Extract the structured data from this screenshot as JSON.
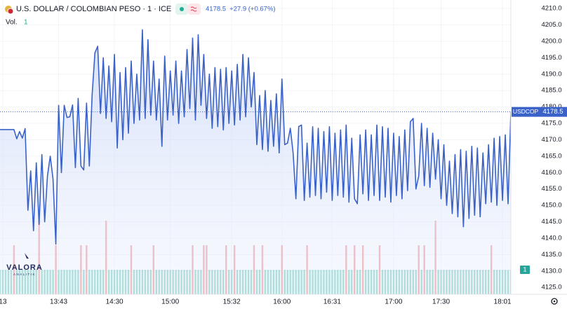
{
  "chart_data": {
    "type": "line",
    "title": "U.S. DOLLAR / COLOMBIAN PESO · 1 · ICE",
    "quote": "4178.5",
    "change": "+27.9 (+0.67%)",
    "watermark": {
      "brand": "VALORA",
      "tagline": "ANALITIK"
    },
    "grid": true,
    "xlim": [
      0,
      183
    ],
    "xticks": [
      {
        "value": 1,
        "label": "13"
      },
      {
        "value": 21,
        "label": "13:43"
      },
      {
        "value": 41,
        "label": "14:30"
      },
      {
        "value": 61,
        "label": "15:00"
      },
      {
        "value": 83,
        "label": "15:32"
      },
      {
        "value": 101,
        "label": "16:00"
      },
      {
        "value": 119,
        "label": "16:31"
      },
      {
        "value": 141,
        "label": "17:00"
      },
      {
        "value": 158,
        "label": "17:30"
      },
      {
        "value": 180,
        "label": "18:01"
      }
    ],
    "ylim": [
      4122.9,
      4212.6
    ],
    "yticks": [
      {
        "value": 4125,
        "label": "4125.0"
      },
      {
        "value": 4130,
        "label": "4130.0"
      },
      {
        "value": 4135,
        "label": "4135.0"
      },
      {
        "value": 4140,
        "label": "4140.0"
      },
      {
        "value": 4145,
        "label": "4145.0"
      },
      {
        "value": 4150,
        "label": "4150.0"
      },
      {
        "value": 4155,
        "label": "4155.0"
      },
      {
        "value": 4160,
        "label": "4160.0"
      },
      {
        "value": 4165,
        "label": "4165.0"
      },
      {
        "value": 4170,
        "label": "4170.0"
      },
      {
        "value": 4175,
        "label": "4175.0"
      },
      {
        "value": 4180,
        "label": "4180.0"
      },
      {
        "value": 4185,
        "label": "4185.0"
      },
      {
        "value": 4190,
        "label": "4190.0"
      },
      {
        "value": 4195,
        "label": "4195.0"
      },
      {
        "value": 4200,
        "label": "4200.0"
      },
      {
        "value": 4205,
        "label": "4205.0"
      },
      {
        "value": 4210,
        "label": "4210.0"
      }
    ],
    "series": [
      {
        "name": "USDCOP",
        "color": "#3a62c8",
        "values": [
          4173.1,
          4173.1,
          4173.1,
          4173.1,
          4173.1,
          4173.1,
          4170.3,
          4172.5,
          4170.5,
          4173.4,
          4148.5,
          4160.5,
          4142.3,
          4163.0,
          4144.2,
          4165.5,
          4145.0,
          4159.0,
          4165.0,
          4158.0,
          4138.2,
          4180.5,
          4160.0,
          4180.5,
          4176.8,
          4177.0,
          4180.6,
          4161.5,
          4182.6,
          4162.0,
          4160.8,
          4181.2,
          4162.0,
          4183.7,
          4196.5,
          4198.5,
          4178.0,
          4195.0,
          4176.5,
          4192.5,
          4175.5,
          4196.0,
          4167.5,
          4190.5,
          4170.0,
          4192.0,
          4172.0,
          4194.0,
          4175.0,
          4190.0,
          4176.0,
          4203.5,
          4176.5,
          4200.5,
          4177.5,
          4194.0,
          4176.0,
          4188.5,
          4168.0,
          4195.5,
          4176.0,
          4191.0,
          4177.5,
          4194.0,
          4175.0,
          4191.0,
          4177.0,
          4197.5,
          4179.5,
          4201.0,
          4176.0,
          4202.0,
          4180.5,
          4196.0,
          4176.5,
          4190.0,
          4173.5,
          4192.0,
          4174.0,
          4191.5,
          4173.0,
          4192.0,
          4175.0,
          4191.0,
          4174.5,
          4193.0,
          4176.0,
          4196.0,
          4177.0,
          4195.0,
          4180.0,
          4190.5,
          4168.5,
          4183.5,
          4167.0,
          4185.0,
          4166.5,
          4182.0,
          4168.0,
          4184.0,
          4166.0,
          4188.5,
          4168.5,
          4169.0,
          4173.5,
          4166.0,
          4152.0,
          4174.0,
          4174.5,
          4151.5,
          4169.0,
          4152.5,
          4174.0,
          4153.0,
          4173.5,
          4152.0,
          4172.5,
          4154.0,
          4174.0,
          4151.5,
          4172.0,
          4153.0,
          4173.0,
          4152.5,
          4174.5,
          4151.0,
          4170.5,
          4152.0,
          4150.5,
          4171.5,
          4153.5,
          4173.0,
          4151.5,
          4171.5,
          4153.0,
          4174.5,
          4151.5,
          4174.0,
          4152.5,
          4173.5,
          4151.0,
          4172.0,
          4153.0,
          4171.0,
          4152.0,
          4173.0,
          4154.5,
          4175.5,
          4176.5,
          4155.0,
          4159.0,
          4175.0,
          4156.0,
          4173.5,
          4155.5,
          4172.0,
          4158.0,
          4170.0,
          4152.0,
          4168.5,
          4150.0,
          4163.5,
          4147.5,
          4165.5,
          4146.5,
          4167.0,
          4143.5,
          4166.5,
          4146.0,
          4168.0,
          4147.0,
          4167.5,
          4146.5,
          4166.0,
          4150.5,
          4168.5,
          4151.0,
          4170.5,
          4150.0,
          4171.0,
          4151.5,
          4171.5,
          4150.5,
          4178.5
        ]
      }
    ],
    "volume": {
      "name": "Vol.",
      "up_color": "#8fd5c8",
      "down_color": "#f1a3a6",
      "ylim": [
        0,
        12
      ],
      "values": [
        1,
        1,
        1,
        1,
        1,
        2,
        1,
        1,
        1,
        1,
        1,
        1,
        1,
        1,
        3,
        1,
        1,
        1,
        1,
        1,
        2,
        1,
        1,
        1,
        1,
        1,
        1,
        1,
        1,
        2,
        1,
        2,
        1,
        1,
        1,
        1,
        1,
        1,
        3,
        1,
        1,
        1,
        1,
        1,
        1,
        1,
        1,
        2,
        1,
        1,
        1,
        1,
        1,
        1,
        1,
        2,
        1,
        1,
        1,
        1,
        1,
        1,
        1,
        1,
        1,
        1,
        1,
        1,
        1,
        2,
        1,
        1,
        1,
        2,
        2,
        1,
        1,
        1,
        1,
        1,
        1,
        2,
        1,
        1,
        2,
        1,
        1,
        1,
        1,
        1,
        1,
        2,
        1,
        1,
        2,
        1,
        1,
        1,
        1,
        1,
        1,
        2,
        1,
        1,
        1,
        1,
        1,
        1,
        1,
        1,
        2,
        1,
        1,
        1,
        1,
        1,
        1,
        1,
        1,
        1,
        1,
        1,
        1,
        1,
        2,
        1,
        1,
        2,
        1,
        1,
        2,
        1,
        1,
        1,
        1,
        1,
        2,
        1,
        1,
        1,
        1,
        1,
        1,
        1,
        1,
        1,
        1,
        1,
        1,
        1,
        2,
        1,
        2,
        1,
        1,
        1,
        3,
        1,
        1,
        1,
        1,
        1,
        1,
        1,
        1,
        1,
        1,
        1,
        1,
        1,
        1,
        1,
        1,
        1,
        1,
        1,
        2,
        1,
        1,
        1,
        1,
        1,
        1,
        1
      ]
    }
  }
}
